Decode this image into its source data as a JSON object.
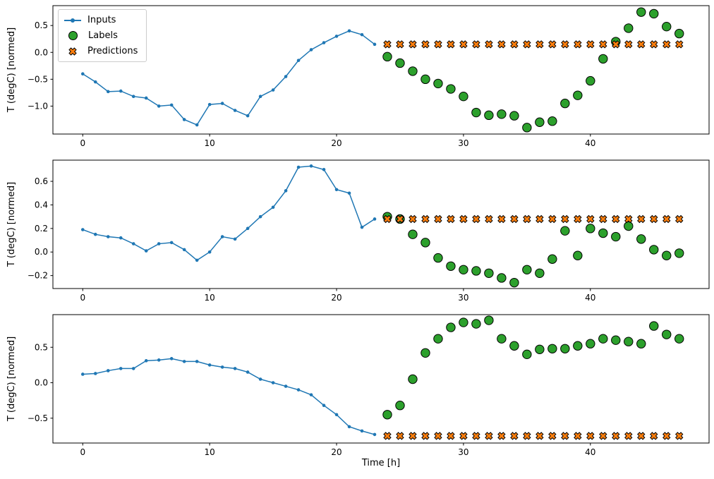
{
  "figure": {
    "background": "#ffffff"
  },
  "legend": {
    "items": [
      {
        "label": "Inputs",
        "marker": "line-dot-icon",
        "color": "#1f77b4"
      },
      {
        "label": "Labels",
        "marker": "circle-icon",
        "color": "#2ca02c"
      },
      {
        "label": "Predictions",
        "marker": "x-icon",
        "color": "#ff7f0e"
      }
    ]
  },
  "chart_data": [
    {
      "type": "line",
      "title": "",
      "xlabel": "",
      "ylabel": "T (degC) [normed]",
      "xlim": [
        -2.35,
        49.35
      ],
      "ylim": [
        -1.52,
        0.87
      ],
      "xticks": [
        0,
        10,
        20,
        30,
        40
      ],
      "yticks": [
        -1.0,
        -0.5,
        0.0,
        0.5
      ],
      "grid": false,
      "legend_position": "upper-left",
      "series": [
        {
          "name": "Inputs",
          "type": "line",
          "color": "#1f77b4",
          "x": [
            0,
            1,
            2,
            3,
            4,
            5,
            6,
            7,
            8,
            9,
            10,
            11,
            12,
            13,
            14,
            15,
            16,
            17,
            18,
            19,
            20,
            21,
            22,
            23
          ],
          "y": [
            -0.4,
            -0.55,
            -0.73,
            -0.72,
            -0.82,
            -0.85,
            -1.0,
            -0.98,
            -1.25,
            -1.35,
            -0.97,
            -0.95,
            -1.08,
            -1.18,
            -0.82,
            -0.7,
            -0.45,
            -0.15,
            0.05,
            0.18,
            0.3,
            0.4,
            0.33,
            0.15
          ]
        },
        {
          "name": "Labels",
          "type": "scatter-circle",
          "color": "#2ca02c",
          "x": [
            24,
            25,
            26,
            27,
            28,
            29,
            30,
            31,
            32,
            33,
            34,
            35,
            36,
            37,
            38,
            39,
            40,
            41,
            42,
            43,
            44,
            45,
            46,
            47
          ],
          "y": [
            -0.08,
            -0.2,
            -0.35,
            -0.5,
            -0.58,
            -0.68,
            -0.82,
            -1.12,
            -1.17,
            -1.15,
            -1.18,
            -1.4,
            -1.3,
            -1.28,
            -0.95,
            -0.8,
            -0.53,
            -0.12,
            0.2,
            0.45,
            0.75,
            0.72,
            0.48,
            0.35
          ]
        },
        {
          "name": "Predictions",
          "type": "scatter-x",
          "color": "#ff7f0e",
          "x": [
            24,
            25,
            26,
            27,
            28,
            29,
            30,
            31,
            32,
            33,
            34,
            35,
            36,
            37,
            38,
            39,
            40,
            41,
            42,
            43,
            44,
            45,
            46,
            47
          ],
          "y": [
            0.15,
            0.15,
            0.15,
            0.15,
            0.15,
            0.15,
            0.15,
            0.15,
            0.15,
            0.15,
            0.15,
            0.15,
            0.15,
            0.15,
            0.15,
            0.15,
            0.15,
            0.15,
            0.15,
            0.15,
            0.15,
            0.15,
            0.15,
            0.15
          ]
        }
      ]
    },
    {
      "type": "line",
      "title": "",
      "xlabel": "",
      "ylabel": "T (degC) [normed]",
      "xlim": [
        -2.35,
        49.35
      ],
      "ylim": [
        -0.31,
        0.78
      ],
      "xticks": [
        0,
        10,
        20,
        30,
        40
      ],
      "yticks": [
        -0.2,
        0.0,
        0.2,
        0.4,
        0.6
      ],
      "grid": false,
      "series": [
        {
          "name": "Inputs",
          "type": "line",
          "color": "#1f77b4",
          "x": [
            0,
            1,
            2,
            3,
            4,
            5,
            6,
            7,
            8,
            9,
            10,
            11,
            12,
            13,
            14,
            15,
            16,
            17,
            18,
            19,
            20,
            21,
            22,
            23
          ],
          "y": [
            0.19,
            0.15,
            0.13,
            0.12,
            0.07,
            0.01,
            0.07,
            0.08,
            0.02,
            -0.07,
            0.0,
            0.13,
            0.11,
            0.2,
            0.3,
            0.38,
            0.52,
            0.72,
            0.73,
            0.7,
            0.53,
            0.5,
            0.21,
            0.28
          ]
        },
        {
          "name": "Labels",
          "type": "scatter-circle",
          "color": "#2ca02c",
          "x": [
            24,
            25,
            26,
            27,
            28,
            29,
            30,
            31,
            32,
            33,
            34,
            35,
            36,
            37,
            38,
            39,
            40,
            41,
            42,
            43,
            44,
            45,
            46,
            47
          ],
          "y": [
            0.3,
            0.28,
            0.15,
            0.08,
            -0.05,
            -0.12,
            -0.15,
            -0.16,
            -0.18,
            -0.22,
            -0.26,
            -0.15,
            -0.18,
            -0.06,
            0.18,
            -0.03,
            0.2,
            0.16,
            0.13,
            0.22,
            0.11,
            0.02,
            -0.03,
            -0.01
          ]
        },
        {
          "name": "Predictions",
          "type": "scatter-x",
          "color": "#ff7f0e",
          "x": [
            24,
            25,
            26,
            27,
            28,
            29,
            30,
            31,
            32,
            33,
            34,
            35,
            36,
            37,
            38,
            39,
            40,
            41,
            42,
            43,
            44,
            45,
            46,
            47
          ],
          "y": [
            0.28,
            0.28,
            0.28,
            0.28,
            0.28,
            0.28,
            0.28,
            0.28,
            0.28,
            0.28,
            0.28,
            0.28,
            0.28,
            0.28,
            0.28,
            0.28,
            0.28,
            0.28,
            0.28,
            0.28,
            0.28,
            0.28,
            0.28,
            0.28
          ]
        }
      ]
    },
    {
      "type": "line",
      "title": "",
      "xlabel": "Time [h]",
      "ylabel": "T (degC) [normed]",
      "xlim": [
        -2.35,
        49.35
      ],
      "ylim": [
        -0.85,
        0.96
      ],
      "xticks": [
        0,
        10,
        20,
        30,
        40
      ],
      "yticks": [
        -0.5,
        0.0,
        0.5
      ],
      "grid": false,
      "series": [
        {
          "name": "Inputs",
          "type": "line",
          "color": "#1f77b4",
          "x": [
            0,
            1,
            2,
            3,
            4,
            5,
            6,
            7,
            8,
            9,
            10,
            11,
            12,
            13,
            14,
            15,
            16,
            17,
            18,
            19,
            20,
            21,
            22,
            23
          ],
          "y": [
            0.12,
            0.13,
            0.17,
            0.2,
            0.2,
            0.31,
            0.32,
            0.34,
            0.3,
            0.3,
            0.25,
            0.22,
            0.2,
            0.15,
            0.05,
            0.0,
            -0.05,
            -0.1,
            -0.17,
            -0.32,
            -0.45,
            -0.62,
            -0.68,
            -0.73
          ]
        },
        {
          "name": "Labels",
          "type": "scatter-circle",
          "color": "#2ca02c",
          "x": [
            24,
            25,
            26,
            27,
            28,
            29,
            30,
            31,
            32,
            33,
            34,
            35,
            36,
            37,
            38,
            39,
            40,
            41,
            42,
            43,
            44,
            45,
            46,
            47
          ],
          "y": [
            -0.45,
            -0.32,
            0.05,
            0.42,
            0.62,
            0.78,
            0.85,
            0.83,
            0.88,
            0.62,
            0.52,
            0.4,
            0.47,
            0.48,
            0.48,
            0.52,
            0.55,
            0.62,
            0.6,
            0.58,
            0.55,
            0.8,
            0.68,
            0.62
          ]
        },
        {
          "name": "Predictions",
          "type": "scatter-x",
          "color": "#ff7f0e",
          "x": [
            24,
            25,
            26,
            27,
            28,
            29,
            30,
            31,
            32,
            33,
            34,
            35,
            36,
            37,
            38,
            39,
            40,
            41,
            42,
            43,
            44,
            45,
            46,
            47
          ],
          "y": [
            -0.75,
            -0.75,
            -0.75,
            -0.75,
            -0.75,
            -0.75,
            -0.75,
            -0.75,
            -0.75,
            -0.75,
            -0.75,
            -0.75,
            -0.75,
            -0.75,
            -0.75,
            -0.75,
            -0.75,
            -0.75,
            -0.75,
            -0.75,
            -0.75,
            -0.75,
            -0.75,
            -0.75
          ]
        }
      ]
    }
  ]
}
